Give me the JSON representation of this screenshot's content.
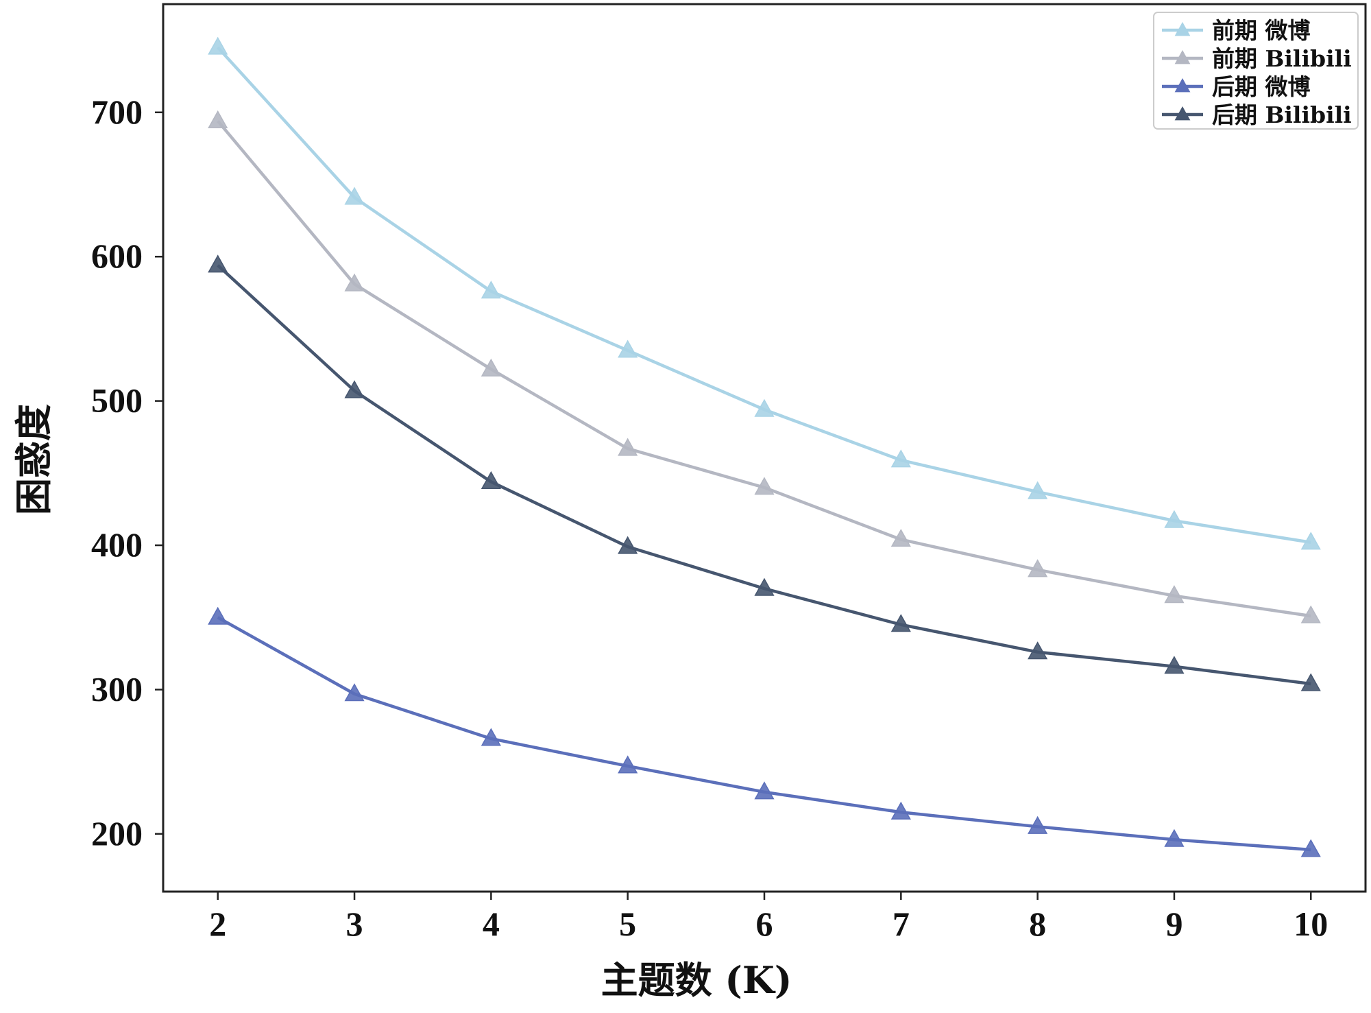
{
  "chart_data": {
    "type": "line",
    "title": "",
    "xlabel": "主题数 (K)",
    "ylabel": "困惑度",
    "x": [
      2,
      3,
      4,
      5,
      6,
      7,
      8,
      9,
      10
    ],
    "xlim": [
      1.6,
      10.4
    ],
    "ylim": [
      160,
      775
    ],
    "yticks": [
      200,
      300,
      400,
      500,
      600,
      700
    ],
    "grid": false,
    "legend_position": "top-right",
    "marker": "triangle",
    "series": [
      {
        "name": "前期 微博",
        "color": "#a9d3e6",
        "values": [
          745,
          641,
          576,
          535,
          494,
          459,
          437,
          417,
          402
        ]
      },
      {
        "name": "前期 Bilibili",
        "color": "#b4b7c2",
        "values": [
          694,
          581,
          522,
          467,
          440,
          404,
          383,
          365,
          351
        ]
      },
      {
        "name": "后期 微博",
        "color": "#5b6fba",
        "values": [
          350,
          297,
          266,
          247,
          229,
          215,
          205,
          196,
          189
        ]
      },
      {
        "name": "后期 Bilibili",
        "color": "#46566f",
        "values": [
          594,
          507,
          444,
          399,
          370,
          345,
          326,
          316,
          304
        ]
      }
    ]
  }
}
